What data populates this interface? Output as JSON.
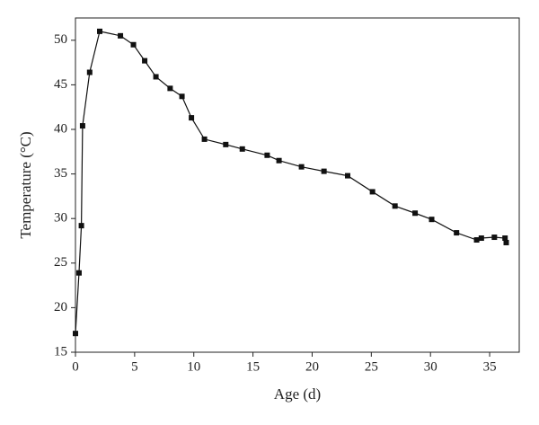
{
  "chart_data": {
    "type": "line",
    "x_label": "Age (d)",
    "y_label": "Temperature (°C)",
    "x": [
      0,
      0.3,
      0.5,
      0.6,
      1.2,
      2.05,
      3.8,
      4.9,
      5.85,
      6.8,
      8.0,
      9.0,
      9.8,
      10.9,
      12.7,
      14.1,
      16.2,
      17.2,
      19.1,
      21.0,
      23.0,
      25.1,
      27.0,
      28.7,
      30.1,
      32.2,
      33.9,
      34.3,
      35.4,
      36.3,
      36.4
    ],
    "series": [
      {
        "color": "#111111",
        "values": [
          17.1,
          23.9,
          29.2,
          40.4,
          46.4,
          51.0,
          50.5,
          49.5,
          47.7,
          45.9,
          44.6,
          43.7,
          41.3,
          38.9,
          38.3,
          37.8,
          37.1,
          36.5,
          35.8,
          35.3,
          34.8,
          33.0,
          31.4,
          30.6,
          29.9,
          28.4,
          27.6,
          27.8,
          27.9,
          27.8,
          27.3
        ]
      }
    ],
    "xlim": [
      0,
      37.5
    ],
    "ylim": [
      15,
      52.5
    ],
    "xticks": [
      0,
      5,
      10,
      15,
      20,
      25,
      30,
      35
    ],
    "yticks": [
      15,
      20,
      25,
      30,
      35,
      40,
      45,
      50
    ]
  }
}
